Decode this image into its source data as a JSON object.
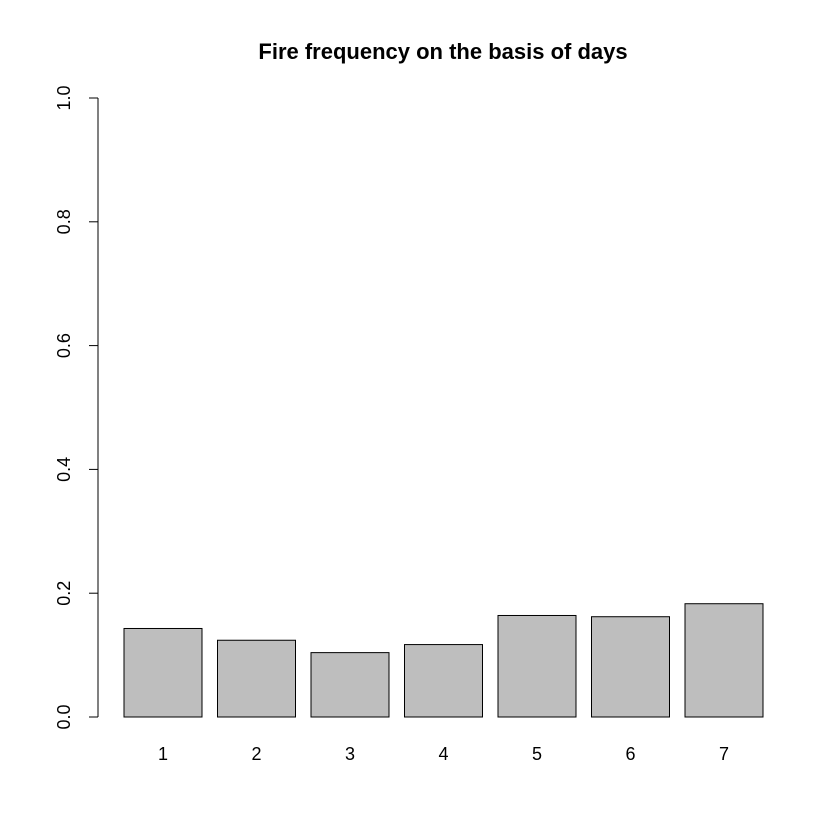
{
  "chart_data": {
    "type": "bar",
    "title": "Fire frequency on the basis of days",
    "xlabel": "",
    "ylabel": "",
    "categories": [
      "1",
      "2",
      "3",
      "4",
      "5",
      "6",
      "7"
    ],
    "values": [
      0.143,
      0.124,
      0.104,
      0.117,
      0.164,
      0.162,
      0.183
    ],
    "ylim": [
      0,
      1.0
    ],
    "yticks": [
      "0.0",
      "0.2",
      "0.4",
      "0.6",
      "0.8",
      "1.0"
    ],
    "grid": false,
    "bar_color": "#bebebe",
    "bar_border_color": "#000000"
  }
}
